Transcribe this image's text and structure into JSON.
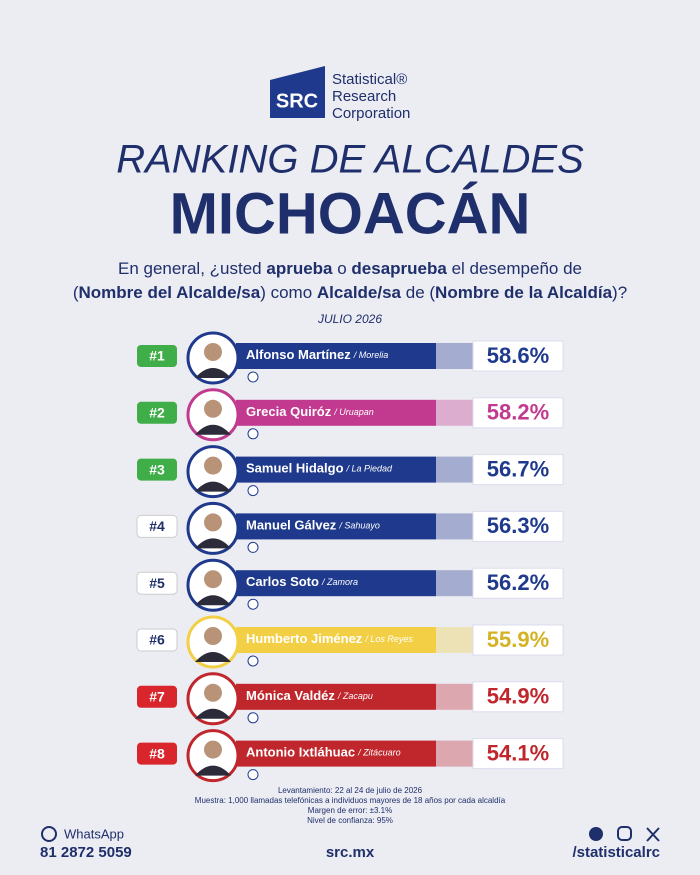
{
  "header": {
    "logo_mark": "SRC",
    "logo_lines": [
      "Statistical®",
      "Research",
      "Corporation"
    ],
    "title": "RANKING DE ALCALDES",
    "state": "MICHOACÁN",
    "question_lines": [
      [
        "En general, ¿usted ",
        "aprueba",
        " o ",
        "desaprueba",
        " el desempeño de"
      ],
      [
        "(",
        "Nombre del Alcalde/sa",
        ") como ",
        "Alcalde/sa",
        " de (",
        "Nombre de la Alcaldía",
        ")?"
      ]
    ],
    "period": "JULIO 2026"
  },
  "rows": [
    {
      "rank": "#1",
      "name": "Alfonso Martínez",
      "city": "/ Morelia",
      "percent": "58.6%",
      "color": "#1f3a8c",
      "percent_color": "#1f3a8c",
      "badge_color": "#3fae49"
    },
    {
      "rank": "#2",
      "name": "Grecia Quiróz",
      "city": "/ Uruapan",
      "percent": "58.2%",
      "color": "#c23a8f",
      "percent_color": "#c23a8f",
      "badge_color": "#3fae49"
    },
    {
      "rank": "#3",
      "name": "Samuel Hidalgo",
      "city": "/ La Piedad",
      "percent": "56.7%",
      "color": "#1f3a8c",
      "percent_color": "#1f3a8c",
      "badge_color": "#3fae49"
    },
    {
      "rank": "#4",
      "name": "Manuel Gálvez",
      "city": "/ Sahuayo",
      "percent": "56.3%",
      "color": "#1f3a8c",
      "percent_color": "#1f3a8c",
      "badge_color": "#ffffff"
    },
    {
      "rank": "#5",
      "name": "Carlos Soto",
      "city": "/ Zamora",
      "percent": "56.2%",
      "color": "#1f3a8c",
      "percent_color": "#1f3a8c",
      "badge_color": "#ffffff"
    },
    {
      "rank": "#6",
      "name": "Humberto Jiménez",
      "city": "/ Los Reyes",
      "percent": "55.9%",
      "color": "#f2cf45",
      "percent_color": "#d4b224",
      "badge_color": "#ffffff"
    },
    {
      "rank": "#7",
      "name": "Mónica Valdéz",
      "city": "/ Zacapu",
      "percent": "54.9%",
      "color": "#c0272d",
      "percent_color": "#c0272d",
      "badge_color": "#d8262c"
    },
    {
      "rank": "#8",
      "name": "Antonio Ixtláhuac",
      "city": "/ Zitácuaro",
      "percent": "54.1%",
      "color": "#c0272d",
      "percent_color": "#c0272d",
      "badge_color": "#d8262c"
    }
  ],
  "footer": {
    "method_lines": [
      "Levantamiento: 22 al 24 de julio de 2026",
      "Muestra: 1,000 llamadas telefónicas a individuos mayores de 18 años por cada alcaldía",
      "Margen de error: ±3.1%",
      "Nivel de confianza: 95%"
    ],
    "whatsapp_label": "WhatsApp",
    "phone": "81 2872 5059",
    "website": "src.mx",
    "social_handle": "/statisticalrc"
  }
}
